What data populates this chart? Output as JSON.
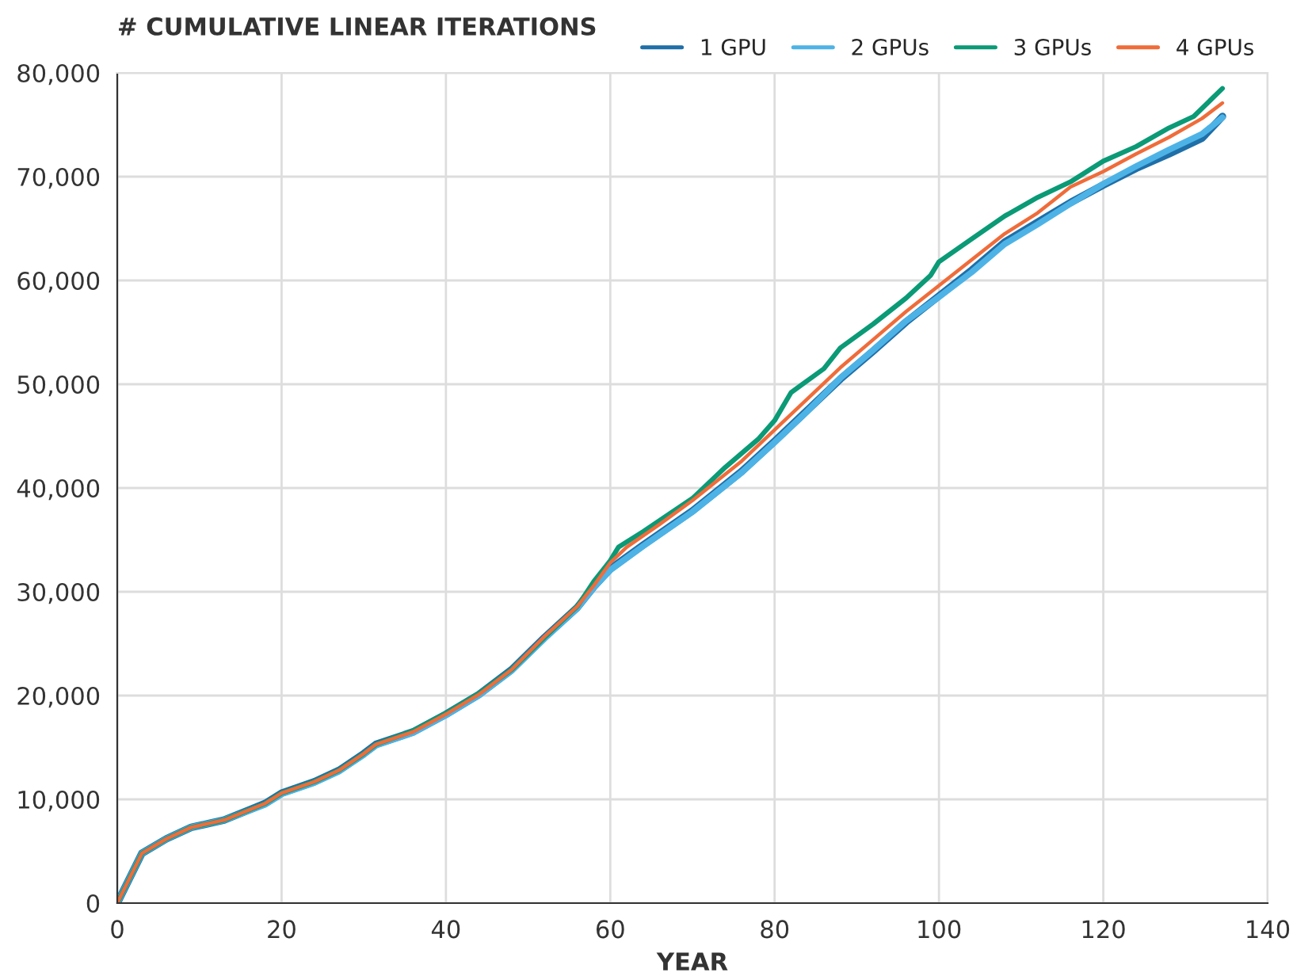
{
  "chart_data": {
    "type": "line",
    "title": "# CUMULATIVE LINEAR ITERATIONS",
    "xlabel": "YEAR",
    "xlim": [
      0,
      140
    ],
    "xticks": [
      0,
      20,
      40,
      60,
      80,
      100,
      120,
      140
    ],
    "ylim": [
      0,
      80000
    ],
    "yticks": [
      {
        "value": 0,
        "label": "0"
      },
      {
        "value": 10000,
        "label": "10,000"
      },
      {
        "value": 20000,
        "label": "20,000"
      },
      {
        "value": 30000,
        "label": "30,000"
      },
      {
        "value": 40000,
        "label": "40,000"
      },
      {
        "value": 50000,
        "label": "50,000"
      },
      {
        "value": 60000,
        "label": "60,000"
      },
      {
        "value": 70000,
        "label": "70,000"
      },
      {
        "value": 80000,
        "label": "80,000"
      }
    ],
    "grid": true,
    "legend": "top right",
    "marker": "none",
    "line_style": "solid",
    "series": [
      {
        "name": "1 GPU",
        "color": "#1f6fa8",
        "x": [
          0,
          3,
          6,
          9,
          13,
          18,
          20,
          24,
          27,
          30,
          31.5,
          36,
          40,
          44,
          48,
          52,
          56,
          58,
          60,
          64,
          70,
          76,
          80,
          84,
          88,
          92,
          96,
          100,
          104,
          108,
          112,
          116,
          120,
          124,
          128,
          132,
          134.5
        ],
        "values": [
          0,
          4800,
          6200,
          7300,
          8000,
          9600,
          10600,
          11700,
          12800,
          14400,
          15300,
          16500,
          18200,
          20100,
          22500,
          25600,
          28500,
          30500,
          32200,
          34500,
          37800,
          41600,
          44500,
          47500,
          50500,
          53200,
          56000,
          58500,
          61000,
          63700,
          65600,
          67500,
          69200,
          70800,
          72200,
          73700,
          75800
        ]
      },
      {
        "name": "2 GPUs",
        "color": "#4db3e6",
        "x": [
          0,
          3,
          6,
          9,
          13,
          18,
          20,
          24,
          27,
          30,
          31.5,
          36,
          40,
          44,
          48,
          52,
          56,
          58,
          60,
          64,
          70,
          76,
          80,
          84,
          88,
          92,
          96,
          100,
          104,
          108,
          112,
          116,
          120,
          124,
          128,
          132,
          134.5
        ],
        "values": [
          0,
          4800,
          6200,
          7300,
          8000,
          9500,
          10500,
          11600,
          12700,
          14300,
          15200,
          16400,
          18100,
          20000,
          22400,
          25500,
          28400,
          30400,
          32100,
          34400,
          37700,
          41500,
          44400,
          47400,
          50600,
          53300,
          56100,
          58400,
          60800,
          63500,
          65400,
          67400,
          69300,
          71000,
          72600,
          74100,
          75700
        ]
      },
      {
        "name": "3 GPUs",
        "color": "#0a9a76",
        "x": [
          0,
          3,
          6,
          9,
          13,
          18,
          20,
          24,
          27,
          30,
          31.5,
          36,
          40,
          44,
          48,
          52,
          56,
          58,
          60,
          61,
          64,
          70,
          74,
          78,
          80,
          82,
          86,
          88,
          92,
          96,
          99,
          100,
          104,
          108,
          112,
          116,
          120,
          124,
          128,
          131,
          134.5
        ],
        "values": [
          0,
          4800,
          6200,
          7300,
          8000,
          9600,
          10600,
          11700,
          12800,
          14400,
          15300,
          16600,
          18300,
          20200,
          22500,
          25600,
          28600,
          31000,
          33000,
          34300,
          35800,
          39000,
          42000,
          44700,
          46500,
          49200,
          51500,
          53500,
          55800,
          58300,
          60500,
          61800,
          64000,
          66200,
          68000,
          69500,
          71500,
          72900,
          74700,
          75800,
          78500
        ]
      },
      {
        "name": "4 GPUs",
        "color": "#ef6c3a",
        "x": [
          0,
          3,
          6,
          9,
          13,
          18,
          20,
          24,
          27,
          30,
          31.5,
          36,
          40,
          44,
          48,
          52,
          56,
          58,
          60,
          62,
          66,
          70,
          76,
          80,
          84,
          88,
          92,
          96,
          100,
          104,
          108,
          112,
          116,
          120,
          124,
          128,
          132,
          134.5
        ],
        "values": [
          0,
          4800,
          6200,
          7300,
          8000,
          9600,
          10600,
          11700,
          12800,
          14400,
          15300,
          16500,
          18200,
          20100,
          22500,
          25700,
          28600,
          30600,
          32800,
          34300,
          36500,
          38800,
          42600,
          45600,
          48600,
          51600,
          54300,
          57000,
          59500,
          62000,
          64500,
          66500,
          69000,
          70500,
          72200,
          73800,
          75600,
          77100
        ]
      }
    ]
  }
}
